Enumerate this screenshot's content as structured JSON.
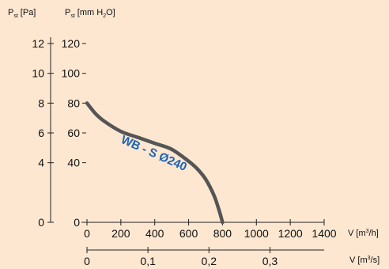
{
  "chart_data": {
    "type": "line",
    "axes": {
      "y_left_label_main": "P",
      "y_left_label_sub": "st",
      "y_left_unit": "[Pa]",
      "y_right_label_main": "P",
      "y_right_label_sub": "st",
      "y_right_unit": "[mm H",
      "y_right_unit_sub": "2",
      "y_right_unit_end": "O]",
      "x1_label": "V [m",
      "x1_label_sup": "3",
      "x1_label_end": "/h]",
      "x2_label": "V [m",
      "x2_label_sup": "3",
      "x2_label_end": "/s]"
    },
    "y_pa_ticks": [
      "12",
      "10",
      "8",
      "6",
      "4",
      "0"
    ],
    "y_pa_values": [
      12,
      10,
      8,
      6,
      4,
      0
    ],
    "y_mm_ticks": [
      "120",
      "100",
      "80",
      "60",
      "40",
      "0"
    ],
    "y_mm_values": [
      120,
      100,
      80,
      60,
      40,
      0
    ],
    "x_m3h_ticks": [
      "0",
      "200",
      "400",
      "600",
      "800",
      "1000",
      "1200",
      "1400"
    ],
    "x_m3h_values": [
      0,
      200,
      400,
      600,
      800,
      1000,
      1200,
      1400
    ],
    "x_m3s_ticks": [
      "0",
      "0,1",
      "0,2",
      "0,3"
    ],
    "x_m3s_values": [
      0,
      0.1,
      0.2,
      0.3
    ],
    "xlim_m3h": [
      0,
      1400
    ],
    "ylim_mm": [
      0,
      120
    ],
    "series": [
      {
        "name": "WB - S Ø240",
        "color": "#555555",
        "label_color": "#1a63b5",
        "x": [
          0,
          50,
          100,
          200,
          300,
          400,
          500,
          600,
          650,
          700,
          750,
          780,
          800
        ],
        "y": [
          80,
          73,
          68,
          61,
          57,
          53,
          49,
          41,
          36,
          29,
          18,
          8,
          0
        ]
      }
    ]
  }
}
